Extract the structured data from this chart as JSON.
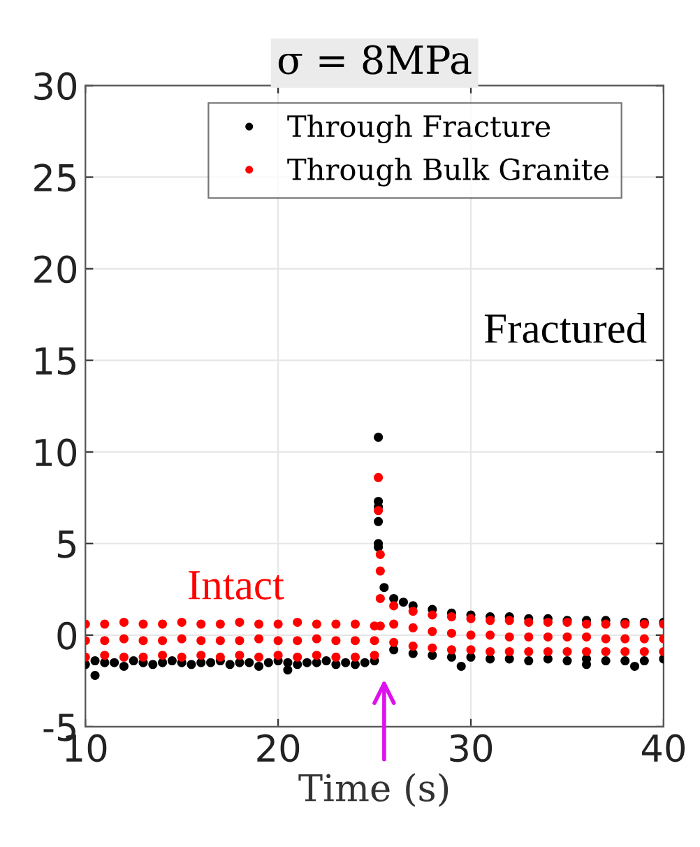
{
  "chart_data": {
    "type": "scatter",
    "title": "σ = 8MPa",
    "xlabel": "Time (s)",
    "xlim": [
      10,
      40
    ],
    "xticks": [
      10,
      20,
      30,
      40
    ],
    "ylim": [
      -5,
      30
    ],
    "yticks": [
      -5,
      0,
      5,
      10,
      15,
      20,
      25,
      30
    ],
    "grid": true,
    "legend": "top",
    "marker": "circle",
    "annotations": [
      "Fractured",
      "Intact"
    ],
    "series": [
      {
        "name": "Through Fracture",
        "color": "#000000",
        "x": [
          10,
          10.5,
          11,
          11.5,
          12,
          12.5,
          13,
          13.5,
          14,
          14.5,
          15,
          15.5,
          16,
          16.5,
          17,
          17.5,
          18,
          18.5,
          19,
          19.5,
          20,
          20.5,
          21,
          21.5,
          22,
          22.5,
          23,
          23.5,
          24,
          24.5,
          25,
          10.5,
          20.5,
          25.2,
          25.2,
          25.2,
          25.2,
          25.2,
          25.2,
          25.5,
          26,
          26.5,
          27,
          28,
          29,
          30,
          31,
          32,
          33,
          34,
          35,
          36,
          37,
          38,
          39,
          40,
          26,
          27,
          28,
          29,
          30,
          31,
          32,
          33,
          34,
          35,
          36,
          37,
          38,
          39,
          40,
          29.5,
          36,
          38.5
        ],
        "values": [
          -1.6,
          -1.4,
          -1.5,
          -1.5,
          -1.7,
          -1.4,
          -1.5,
          -1.6,
          -1.5,
          -1.4,
          -1.5,
          -1.6,
          -1.5,
          -1.5,
          -1.4,
          -1.6,
          -1.5,
          -1.5,
          -1.7,
          -1.5,
          -1.4,
          -1.5,
          -1.6,
          -1.5,
          -1.5,
          -1.4,
          -1.6,
          -1.5,
          -1.6,
          -1.5,
          -1.4,
          -2.2,
          -1.9,
          10.8,
          7.3,
          7.0,
          6.2,
          5.0,
          4.8,
          2.6,
          2.0,
          1.8,
          1.6,
          1.4,
          1.2,
          1.1,
          1.0,
          1.0,
          0.9,
          0.9,
          0.8,
          0.8,
          0.8,
          0.7,
          0.7,
          0.7,
          -0.8,
          -1.0,
          -1.1,
          -1.2,
          -1.2,
          -1.3,
          -1.3,
          -1.4,
          -1.3,
          -1.4,
          -1.3,
          -1.4,
          -1.4,
          -1.4,
          -1.3,
          -1.7,
          -1.6,
          -1.7
        ]
      },
      {
        "name": "Through Bulk Granite",
        "color": "#ff0000",
        "x": [
          10,
          11,
          12,
          13,
          14,
          15,
          16,
          17,
          18,
          19,
          20,
          21,
          22,
          23,
          24,
          25,
          10,
          11,
          12,
          13,
          14,
          15,
          16,
          17,
          18,
          19,
          20,
          21,
          22,
          23,
          24,
          25,
          10,
          11,
          12,
          13,
          14,
          15,
          16,
          17,
          18,
          19,
          20,
          21,
          22,
          23,
          24,
          25,
          25.2,
          25.2,
          25.3,
          25.3,
          25.3,
          25.3,
          26,
          27,
          28,
          29,
          30,
          31,
          32,
          33,
          34,
          35,
          36,
          37,
          38,
          39,
          40,
          26,
          27,
          28,
          29,
          30,
          31,
          32,
          33,
          34,
          35,
          36,
          37,
          38,
          39,
          40,
          26,
          27,
          28,
          29,
          30,
          31,
          32,
          33,
          34,
          35,
          36,
          37,
          38,
          39,
          40
        ],
        "values": [
          0.6,
          0.6,
          0.7,
          0.6,
          0.6,
          0.7,
          0.6,
          0.6,
          0.7,
          0.6,
          0.6,
          0.7,
          0.6,
          0.6,
          0.6,
          0.5,
          -0.3,
          -0.3,
          -0.2,
          -0.3,
          -0.3,
          -0.2,
          -0.3,
          -0.3,
          -0.3,
          -0.2,
          -0.3,
          -0.3,
          -0.2,
          -0.3,
          -0.3,
          -0.3,
          -1.2,
          -1.1,
          -1.2,
          -1.2,
          -1.1,
          -1.2,
          -1.1,
          -1.2,
          -1.1,
          -1.2,
          -1.1,
          -1.2,
          -1.1,
          -1.2,
          -1.2,
          -1.1,
          8.6,
          6.8,
          4.4,
          3.5,
          2.0,
          0.5,
          1.6,
          1.3,
          1.1,
          1.0,
          0.9,
          0.8,
          0.8,
          0.7,
          0.7,
          0.7,
          0.6,
          0.6,
          0.6,
          0.6,
          0.6,
          0.6,
          0.4,
          0.2,
          0.1,
          0.0,
          0.0,
          -0.1,
          -0.1,
          -0.1,
          -0.1,
          -0.1,
          -0.2,
          -0.2,
          -0.2,
          -0.2,
          -0.4,
          -0.6,
          -0.7,
          -0.8,
          -0.8,
          -0.9,
          -0.9,
          -0.9,
          -0.9,
          -0.9,
          -0.9,
          -0.9,
          -0.9,
          -0.9,
          -0.9
        ]
      }
    ]
  }
}
